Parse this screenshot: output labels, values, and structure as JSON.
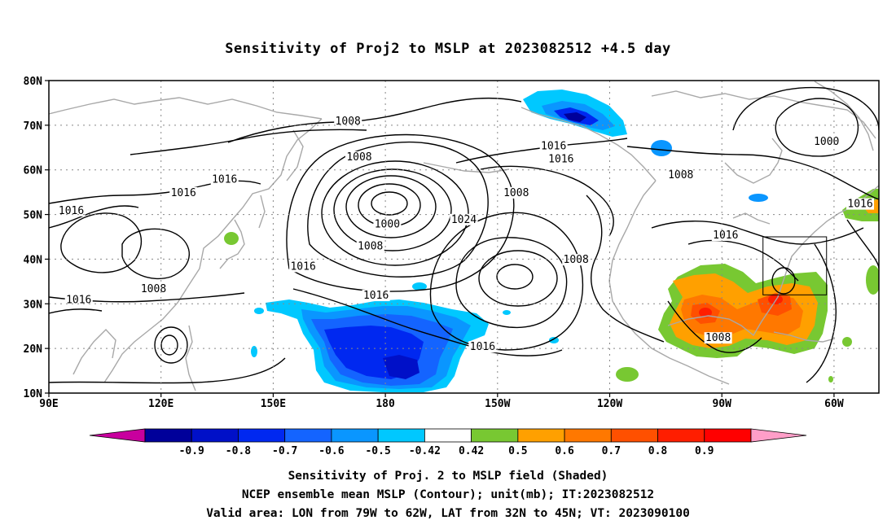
{
  "title": "Sensitivity of Proj2 to MSLP at 2023082512 +4.5 day",
  "map": {
    "lat_labels": [
      "80N",
      "70N",
      "60N",
      "50N",
      "40N",
      "30N",
      "20N",
      "10N"
    ],
    "lon_labels": [
      "90E",
      "120E",
      "150E",
      "180",
      "150W",
      "120W",
      "90W",
      "60W"
    ],
    "lat_range": [
      10,
      80
    ],
    "lon_range": [
      90,
      312
    ],
    "grid_dotted": true,
    "colors": {
      "coast": "#a8a8a8",
      "contour": "#000000",
      "neg_shade": [
        "#00c8ff",
        "#0a96ff",
        "#1464ff",
        "#0028f0",
        "#0010c8",
        "#00009a"
      ],
      "pos_shade": [
        "#78c832",
        "#ffa000",
        "#ff7800",
        "#ff5000",
        "#ff1e00"
      ]
    },
    "valid_box": {
      "lon": [
        281,
        298
      ],
      "lat": [
        32,
        45
      ]
    },
    "contour_labels": [
      {
        "text": "1008",
        "lon": 170,
        "lat": 70.5
      },
      {
        "text": "1008",
        "lon": 173,
        "lat": 62.5
      },
      {
        "text": "1016",
        "lon": 225,
        "lat": 65
      },
      {
        "text": "1016",
        "lon": 227,
        "lat": 62
      },
      {
        "text": "1008",
        "lon": 259,
        "lat": 58.5
      },
      {
        "text": "1000",
        "lon": 298,
        "lat": 66
      },
      {
        "text": "1016",
        "lon": 137,
        "lat": 57.5
      },
      {
        "text": "1016",
        "lon": 126,
        "lat": 54.5
      },
      {
        "text": "1016",
        "lon": 96,
        "lat": 50.5
      },
      {
        "text": "1008",
        "lon": 215,
        "lat": 54.5
      },
      {
        "text": "1016",
        "lon": 307,
        "lat": 52
      },
      {
        "text": "1000",
        "lon": 180.5,
        "lat": 47.5
      },
      {
        "text": "1024",
        "lon": 201,
        "lat": 48.5
      },
      {
        "text": "1016",
        "lon": 271,
        "lat": 45
      },
      {
        "text": "1008",
        "lon": 176,
        "lat": 42.5
      },
      {
        "text": "1008",
        "lon": 231,
        "lat": 39.5
      },
      {
        "text": "1016",
        "lon": 158,
        "lat": 38
      },
      {
        "text": "1016",
        "lon": 177.5,
        "lat": 31.5
      },
      {
        "text": "1008",
        "lon": 118,
        "lat": 33
      },
      {
        "text": "1016",
        "lon": 98,
        "lat": 30.5
      },
      {
        "text": "1008",
        "lon": 269,
        "lat": 22
      },
      {
        "text": "1016",
        "lon": 206,
        "lat": 20
      }
    ]
  },
  "colorbar": {
    "ticks": [
      "-0.9",
      "-0.8",
      "-0.7",
      "-0.6",
      "-0.5",
      "-0.42",
      "0.42",
      "0.5",
      "0.6",
      "0.7",
      "0.8",
      "0.9"
    ],
    "colors": [
      "#c8009e",
      "#00009a",
      "#0010c8",
      "#0028f0",
      "#1464ff",
      "#0a96ff",
      "#00c8ff",
      "#ffffff",
      "#78c832",
      "#ffa000",
      "#ff7800",
      "#ff5000",
      "#ff1e00",
      "#ff0000",
      "#ff9ec8"
    ]
  },
  "captions": [
    "Sensitivity of Proj. 2 to MSLP field (Shaded)",
    "NCEP ensemble mean MSLP (Contour); unit(mb); IT:2023082512",
    "Valid area: LON from 79W to 62W, LAT from 32N to 45N; VT: 2023090100"
  ]
}
